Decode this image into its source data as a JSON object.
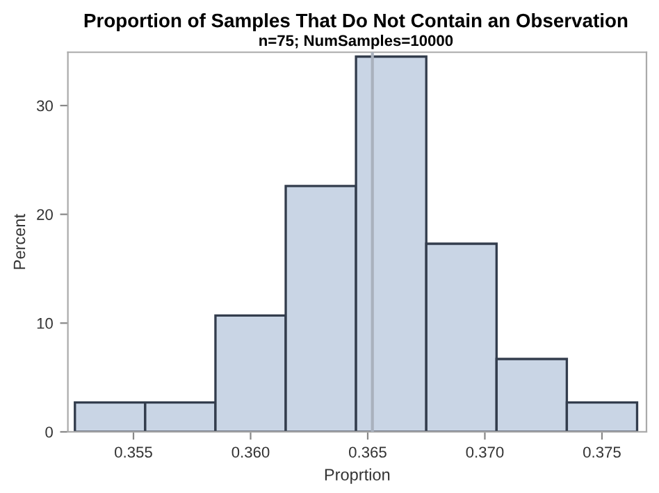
{
  "chart_data": {
    "type": "histogram",
    "title": "Proportion of Samples That Do Not Contain an Observation",
    "subtitle": "n=75; NumSamples=10000",
    "xlabel": "Proprtion",
    "ylabel": "Percent",
    "bins": [
      0.3525,
      0.3555,
      0.3585,
      0.3615,
      0.3645,
      0.3675,
      0.3705,
      0.3735,
      0.3765
    ],
    "values": [
      2.7,
      2.7,
      10.7,
      22.6,
      34.5,
      17.3,
      6.7,
      2.7
    ],
    "color": "#c9d5e5",
    "xlim": [
      0.3522,
      0.3769
    ],
    "xticks": [
      {
        "value": 0.355,
        "label": "0.355"
      },
      {
        "value": 0.36,
        "label": "0.360"
      },
      {
        "value": 0.365,
        "label": "0.365"
      },
      {
        "value": 0.37,
        "label": "0.370"
      },
      {
        "value": 0.375,
        "label": "0.375"
      }
    ],
    "ylim": [
      0,
      34.9
    ],
    "yticks": [
      0,
      10,
      20,
      30
    ],
    "ref_lines": [
      {
        "axis": "x",
        "value": 0.3652,
        "color": "#a9b1bd"
      }
    ],
    "grid": false,
    "legend": false
  }
}
